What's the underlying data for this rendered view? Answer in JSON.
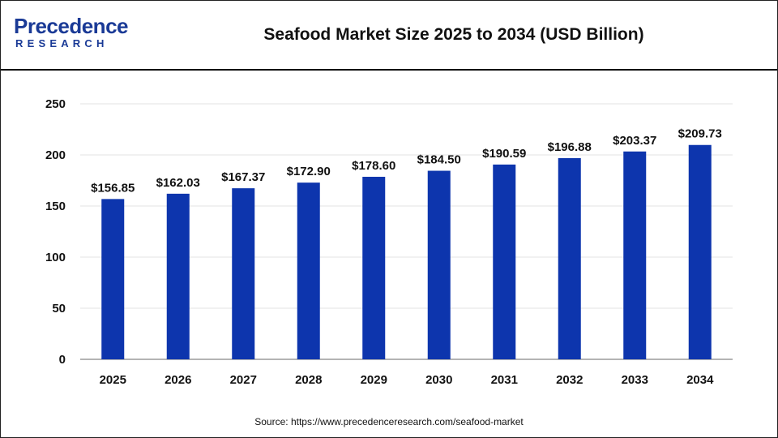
{
  "brand": {
    "logo_main": "Precedence",
    "logo_sub": "RESEARCH",
    "color": "#1a3a96"
  },
  "title": "Seafood Market Size 2025 to 2034 (USD Billion)",
  "source": "Source:  https://www.precedenceresearch.com/seafood-market",
  "chart_data": {
    "type": "bar",
    "title": "Seafood Market Size 2025 to 2034 (USD Billion)",
    "xlabel": "",
    "ylabel": "",
    "categories": [
      "2025",
      "2026",
      "2027",
      "2028",
      "2029",
      "2030",
      "2031",
      "2032",
      "2033",
      "2034"
    ],
    "values": [
      156.85,
      162.03,
      167.37,
      172.9,
      178.6,
      184.5,
      190.59,
      196.88,
      203.37,
      209.73
    ],
    "value_labels": [
      "$156.85",
      "$162.03",
      "$167.37",
      "$172.90",
      "$178.60",
      "$184.50",
      "$190.59",
      "$196.88",
      "$203.37",
      "$209.73"
    ],
    "yticks": [
      0,
      50,
      100,
      150,
      200,
      250
    ],
    "ylim": [
      0,
      250
    ],
    "grid": true,
    "bar_color": "#0d35ad"
  }
}
